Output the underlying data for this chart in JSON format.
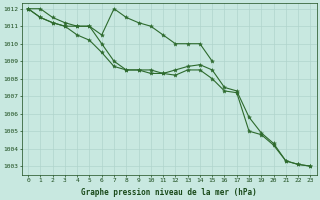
{
  "xlabel": "Graphe pression niveau de la mer (hPa)",
  "x": [
    0,
    1,
    2,
    3,
    4,
    5,
    6,
    7,
    8,
    9,
    10,
    11,
    12,
    13,
    14,
    15,
    16,
    17,
    18,
    19,
    20,
    21,
    22,
    23
  ],
  "line1": [
    1012,
    1012,
    1011.5,
    1011.2,
    1011,
    1011,
    1010.5,
    1012,
    1011.5,
    1011.2,
    1011,
    1010.5,
    1010,
    1010,
    1010,
    1009,
    null,
    null,
    null,
    null,
    null,
    null,
    null,
    null
  ],
  "line2": [
    1012,
    1011.5,
    1011.2,
    1011,
    1011,
    1011,
    1010,
    1009,
    1008.5,
    1008.5,
    1008.3,
    1008.3,
    1008.2,
    1008.5,
    1008.5,
    1008,
    1007.3,
    1007.2,
    1005,
    1004.8,
    1004.2,
    1003.3,
    1003.1,
    1003
  ],
  "line3": [
    1012,
    1011.5,
    1011.2,
    1011,
    1010.5,
    1010.2,
    1009.5,
    1008.7,
    1008.5,
    1008.5,
    1008.5,
    1008.3,
    1008.5,
    1008.7,
    1008.8,
    1008.5,
    1007.5,
    1007.3,
    1005.8,
    1004.9,
    1004.3,
    1003.3,
    1003.1,
    1003
  ],
  "ylim": [
    1002.5,
    1012.3
  ],
  "yticks": [
    1003,
    1004,
    1005,
    1006,
    1007,
    1008,
    1009,
    1010,
    1011,
    1012
  ],
  "line_color": "#2d6a2d",
  "bg_color": "#c8e8e0",
  "grid_color": "#b0d4cc",
  "text_color": "#1a4a1a",
  "marker": "*",
  "marker_size": 3,
  "linewidth": 0.8
}
